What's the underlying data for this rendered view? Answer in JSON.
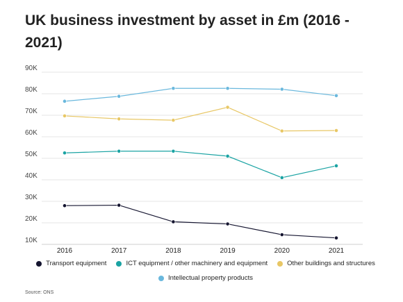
{
  "chart_data": {
    "type": "line",
    "title": "UK business investment by asset in £m (2016 - 2021)",
    "xlabel": "",
    "ylabel": "",
    "categories": [
      "2016",
      "2017",
      "2018",
      "2019",
      "2020",
      "2021"
    ],
    "ylim": [
      10000,
      90000
    ],
    "yticks": [
      10000,
      20000,
      30000,
      40000,
      50000,
      60000,
      70000,
      80000,
      90000
    ],
    "ytick_labels": [
      "10K",
      "20K",
      "30K",
      "40K",
      "50K",
      "60K",
      "70K",
      "80K",
      "90K"
    ],
    "grid": true,
    "legend_position": "bottom",
    "series": [
      {
        "name": "Transport equipment",
        "color": "#151530",
        "values": [
          28000,
          28200,
          20500,
          19500,
          14500,
          13000
        ]
      },
      {
        "name": "ICT equipment / other machinery and equipment",
        "color": "#1aa3a3",
        "values": [
          52500,
          53300,
          53300,
          51000,
          41000,
          46500
        ]
      },
      {
        "name": "Other buildings and structures",
        "color": "#e8c765",
        "values": [
          69700,
          68300,
          67700,
          73700,
          62700,
          62900
        ]
      },
      {
        "name": "Intellectual property products",
        "color": "#6ab8dd",
        "values": [
          76500,
          78800,
          82500,
          82500,
          82100,
          79100
        ]
      }
    ],
    "source": "Source: ONS"
  }
}
